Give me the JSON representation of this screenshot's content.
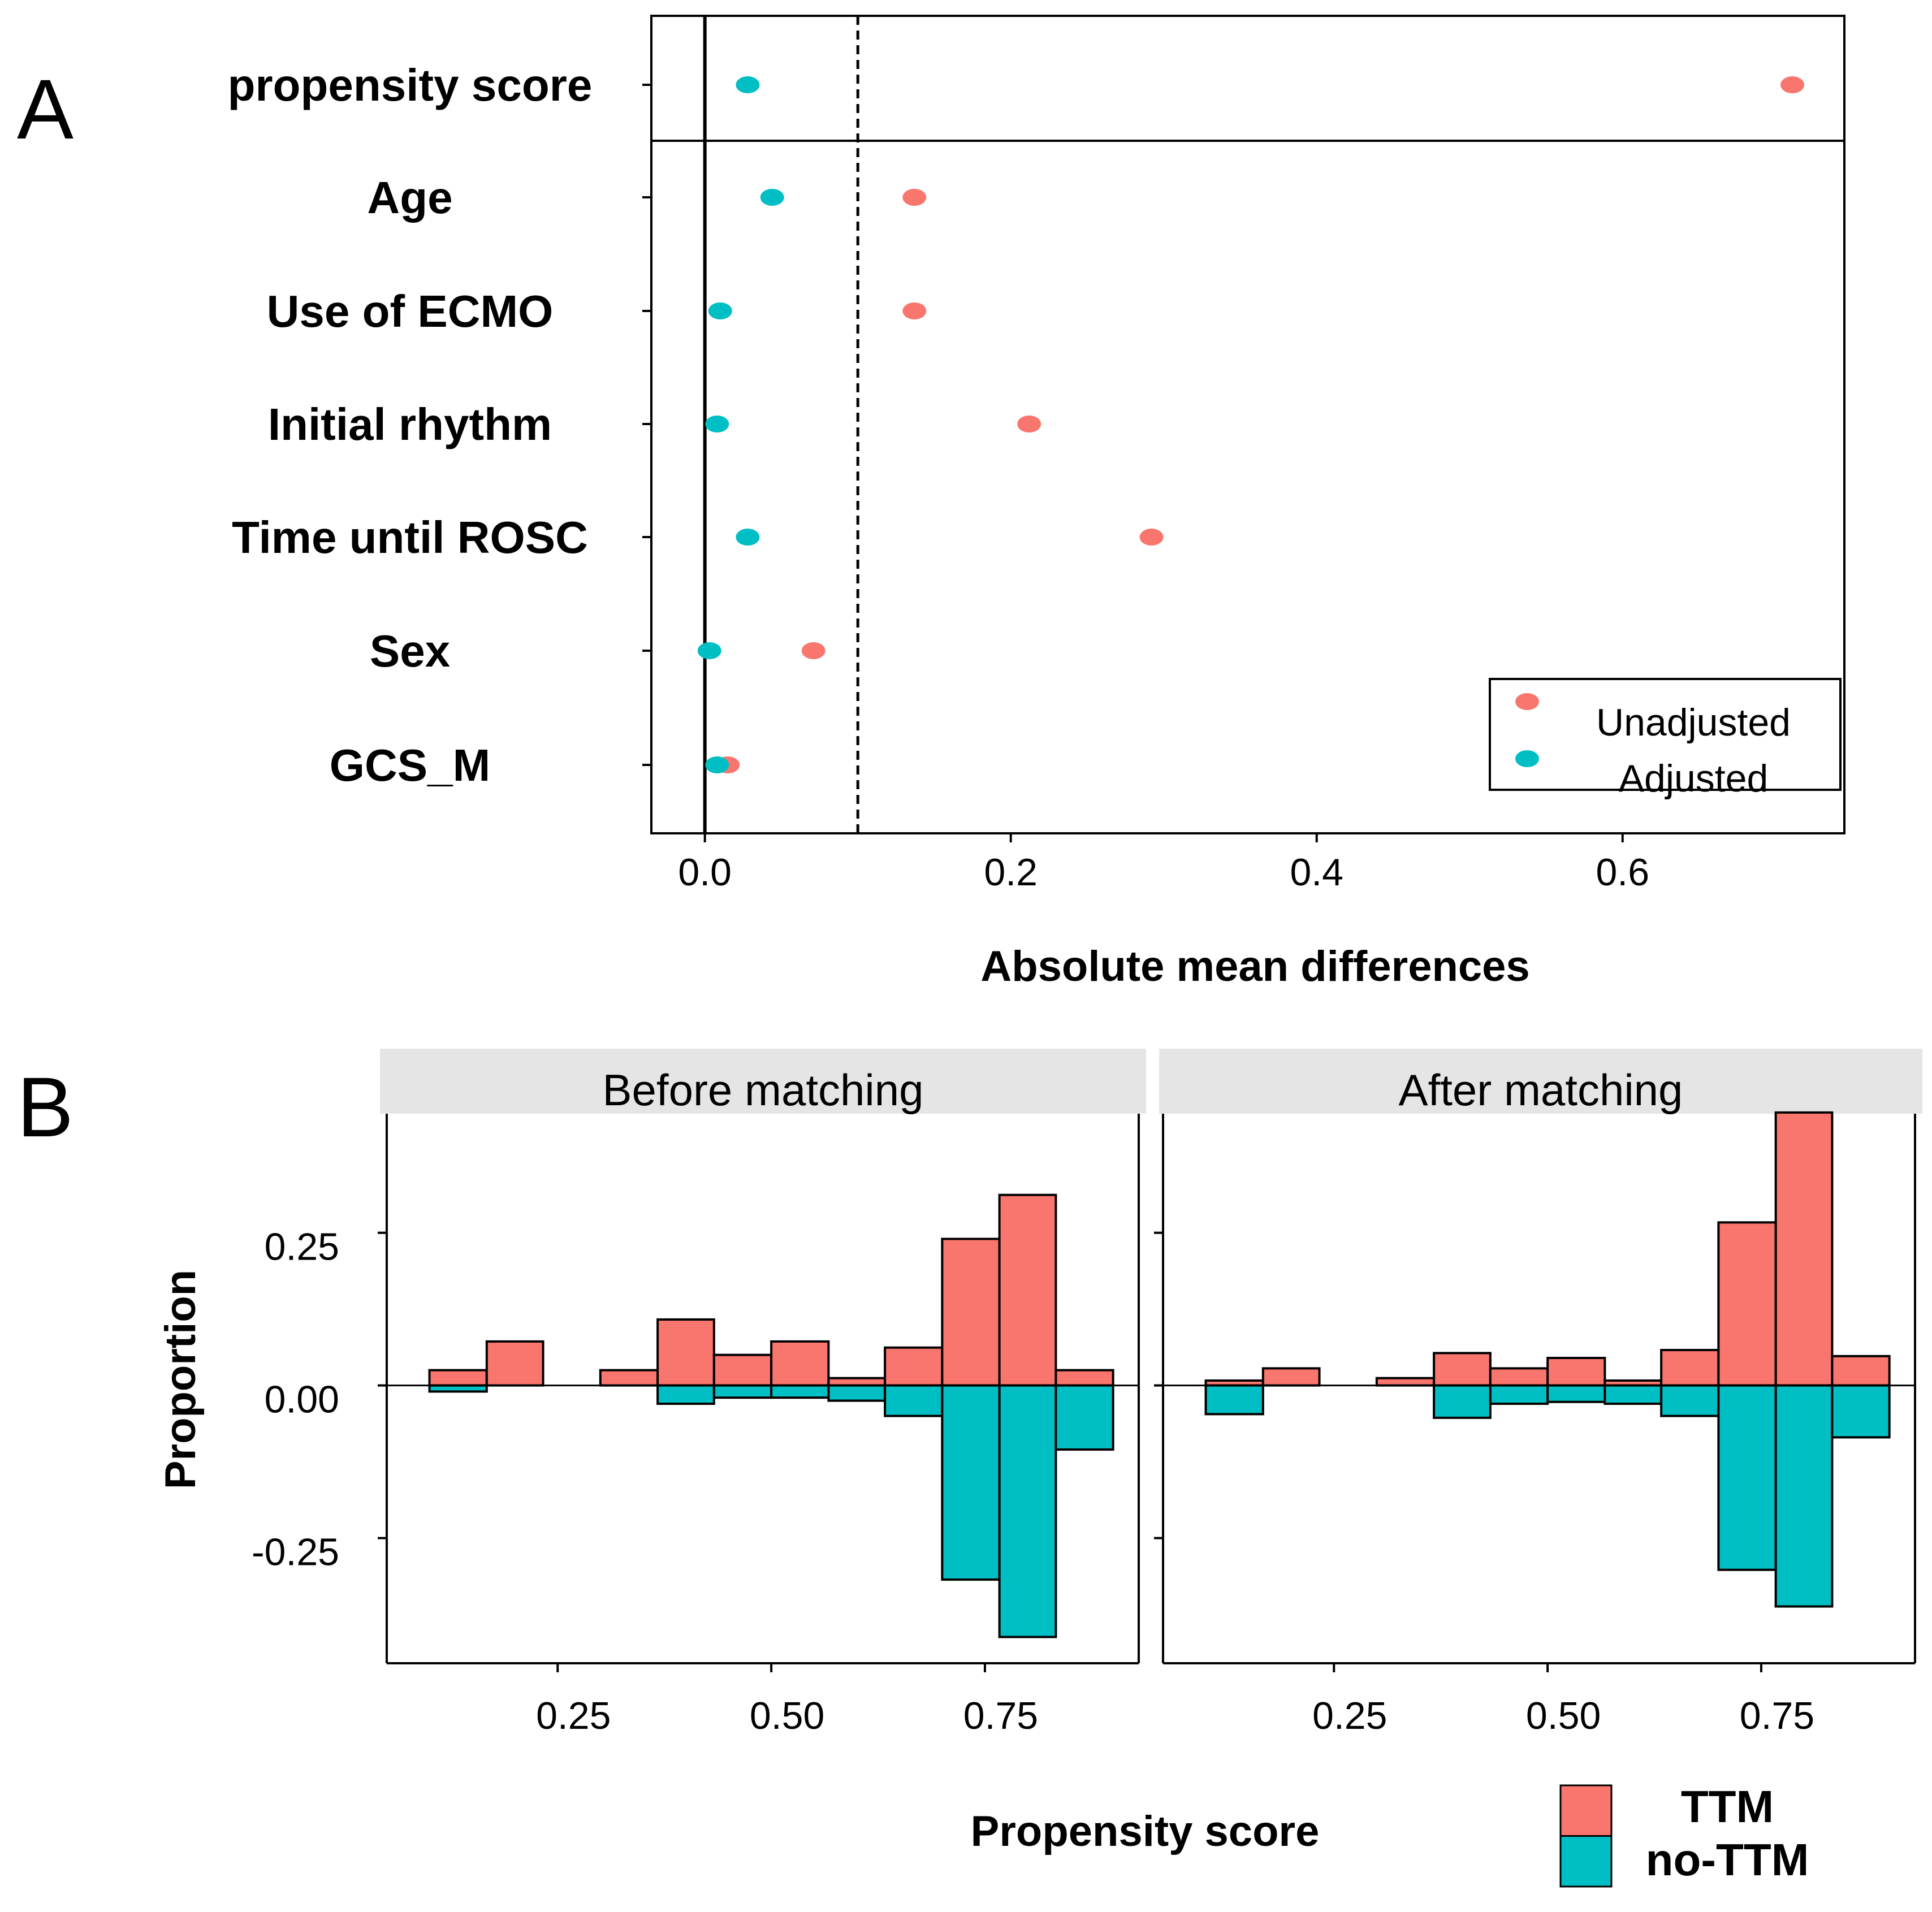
{
  "panels": {
    "a_letter": "A",
    "b_letter": "B"
  },
  "colors": {
    "unadjusted": "#F8766D",
    "adjusted": "#00BFC4",
    "ttm": "#F8766D",
    "no_ttm": "#00BFC4",
    "strip_bg": "#E5E5E5",
    "axis": "#000000"
  },
  "chart_data": [
    {
      "type": "scatter",
      "title": "",
      "xlabel": "Absolute mean differences",
      "ylabel": "",
      "xlim": [
        -0.035,
        0.745
      ],
      "xticks": [
        0.0,
        0.2,
        0.4,
        0.6
      ],
      "xtick_labels": [
        "0.0",
        "0.2",
        "0.4",
        "0.6"
      ],
      "reference_lines": [
        {
          "x": 0.0,
          "style": "solid"
        },
        {
          "x": 0.1,
          "style": "dashed"
        }
      ],
      "categories": [
        "propensity score",
        "Age",
        "Use of ECMO",
        "Initial rhythm",
        "Time until ROSC",
        "Sex",
        "GCS_M"
      ],
      "series": [
        {
          "name": "Unadjusted",
          "values": [
            0.711,
            0.137,
            0.137,
            0.212,
            0.292,
            0.071,
            0.015
          ]
        },
        {
          "name": "Adjusted",
          "values": [
            0.028,
            0.044,
            0.01,
            0.008,
            0.028,
            0.003,
            0.008
          ]
        }
      ],
      "legend": {
        "position": "bottom-right",
        "entries": [
          "Unadjusted",
          "Adjusted"
        ]
      }
    },
    {
      "type": "bar",
      "subtype": "mirrored-histogram",
      "xlabel": "Propensity score",
      "ylabel": "Proportion",
      "xlim": [
        0.05,
        0.93
      ],
      "ylim": [
        -0.455,
        0.445
      ],
      "xticks": [
        0.25,
        0.5,
        0.75
      ],
      "xtick_labels": [
        "0.25",
        "0.50",
        "0.75"
      ],
      "yticks": [
        0.25,
        0.0,
        -0.25
      ],
      "ytick_labels": [
        "0.25",
        "0.00",
        "-0.25"
      ],
      "bin_edges": [
        0.1,
        0.167,
        0.233,
        0.3,
        0.367,
        0.433,
        0.5,
        0.567,
        0.633,
        0.7,
        0.767,
        0.833,
        0.9
      ],
      "facets": [
        {
          "title": "Before matching",
          "series": [
            {
              "name": "TTM",
              "values": [
                0.025,
                0.072,
                0,
                0.025,
                0.108,
                0.05,
                0.072,
                0.012,
                0.062,
                0.24,
                0.312,
                0.025
              ]
            },
            {
              "name": "no-TTM",
              "values": [
                0.01,
                0,
                0,
                0,
                0.03,
                0.02,
                0.02,
                0.025,
                0.05,
                0.318,
                0.412,
                0.105
              ]
            }
          ]
        },
        {
          "title": "After matching",
          "series": [
            {
              "name": "TTM",
              "values": [
                0.008,
                0.028,
                0,
                0.012,
                0.053,
                0.028,
                0.045,
                0.008,
                0.058,
                0.267,
                0.447,
                0.048
              ]
            },
            {
              "name": "no-TTM",
              "values": [
                0.047,
                0,
                0,
                0,
                0.053,
                0.03,
                0.027,
                0.03,
                0.05,
                0.302,
                0.362,
                0.085
              ]
            }
          ]
        }
      ],
      "legend": {
        "position": "bottom-right",
        "entries": [
          "TTM",
          "no-TTM"
        ]
      }
    }
  ]
}
